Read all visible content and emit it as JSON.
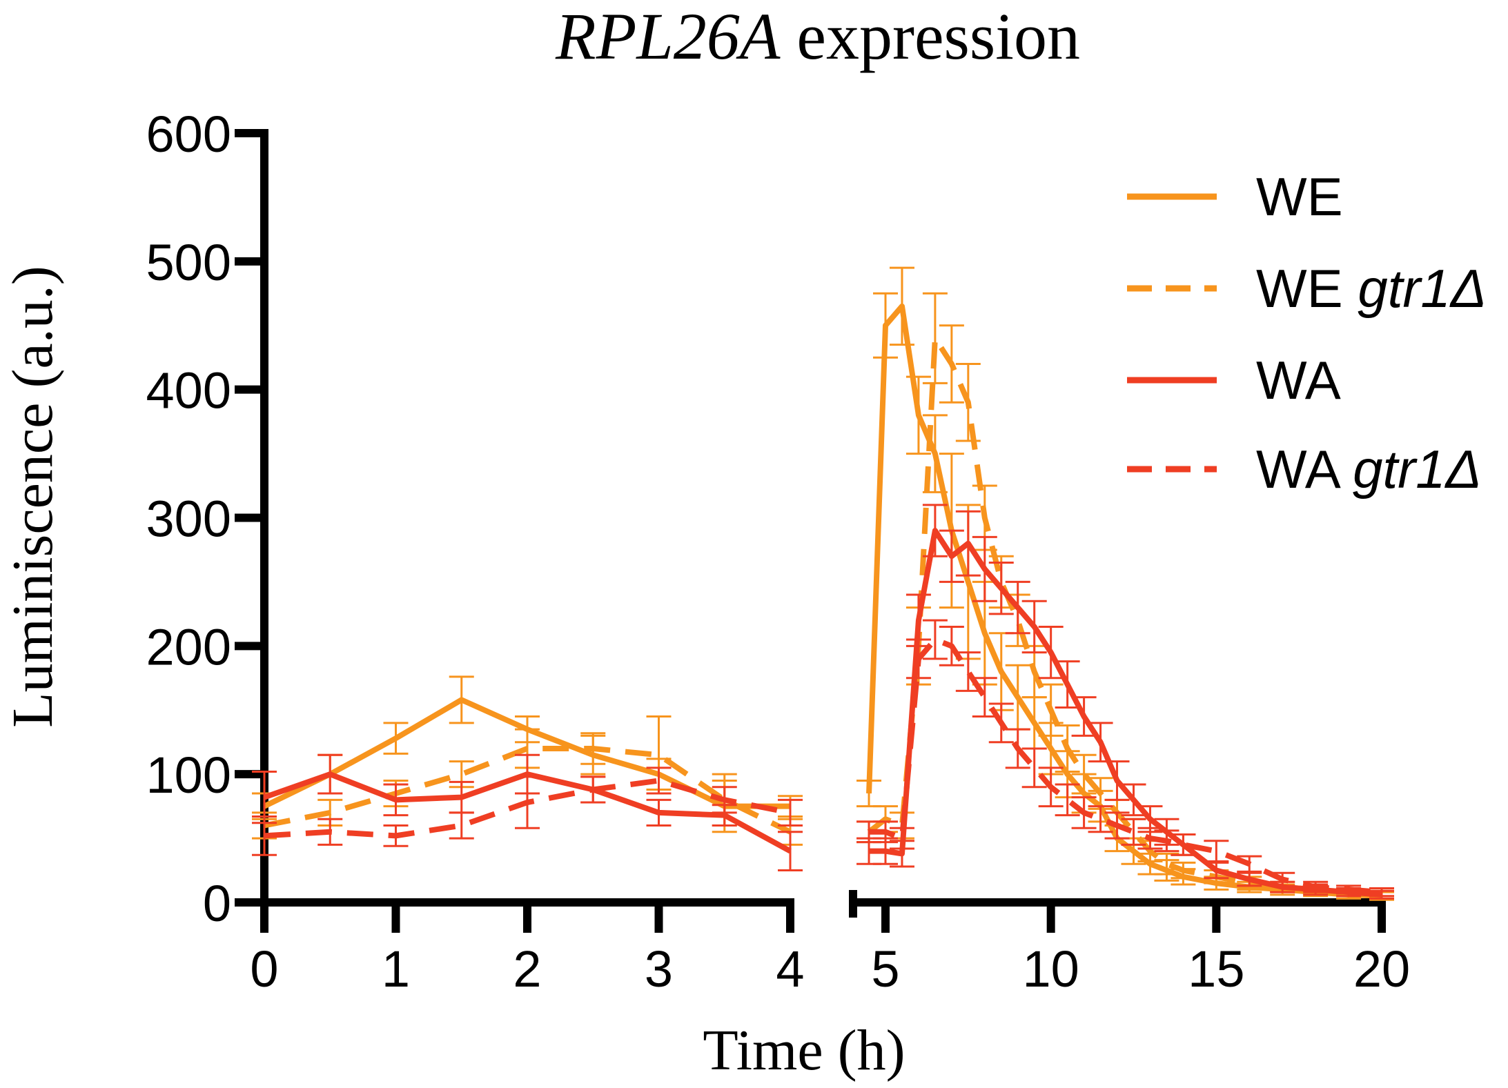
{
  "chart_data": {
    "type": "line",
    "title": "expression",
    "title_gene": "RPL26A",
    "xlabel": "Time (h)",
    "ylabel": "Luminiscence (a.u.)",
    "ylim": [
      0,
      600
    ],
    "y_ticks": [
      "0",
      "100",
      "200",
      "300",
      "400",
      "500",
      "600"
    ],
    "x_ticks_left": [
      "0",
      "1",
      "2",
      "3",
      "4"
    ],
    "x_ticks_right": [
      "5",
      "10",
      "15",
      "20"
    ],
    "x_ranges": {
      "left": [
        0,
        4
      ],
      "right": [
        4.1,
        20
      ]
    },
    "legend": "top-right",
    "series": [
      {
        "name": "WE",
        "name_suffix": "",
        "color": "#F7941D",
        "dash": "solid",
        "x": [
          0,
          0.5,
          1,
          1.5,
          2,
          2.5,
          3,
          3.5,
          4,
          4.5,
          5,
          5.5,
          6,
          6.5,
          7,
          7.5,
          8,
          8.5,
          9,
          9.5,
          10,
          10.5,
          11,
          11.5,
          12,
          12.5,
          13,
          13.5,
          14,
          15,
          16,
          17,
          18,
          19,
          20
        ],
        "y": [
          75,
          100,
          128,
          158,
          135,
          115,
          100,
          75,
          75,
          85,
          450,
          465,
          380,
          350,
          290,
          250,
          210,
          180,
          160,
          140,
          120,
          100,
          85,
          75,
          50,
          40,
          30,
          25,
          20,
          15,
          12,
          10,
          8,
          6,
          5
        ],
        "err": [
          10,
          15,
          12,
          18,
          10,
          15,
          12,
          20,
          8,
          10,
          25,
          30,
          30,
          30,
          60,
          60,
          40,
          30,
          25,
          20,
          20,
          18,
          15,
          12,
          10,
          10,
          8,
          8,
          6,
          5,
          4,
          4,
          3,
          3,
          3
        ]
      },
      {
        "name": "WE",
        "name_suffix": "gtr1Δ",
        "color": "#F7941D",
        "dash": "dashed",
        "x": [
          0,
          0.5,
          1,
          1.5,
          2,
          2.5,
          3,
          3.5,
          4,
          4.5,
          5,
          5.5,
          6,
          6.5,
          7,
          7.5,
          8,
          8.5,
          9,
          9.5,
          10,
          10.5,
          11,
          11.5,
          12,
          12.5,
          13,
          13.5,
          14,
          15,
          16,
          17,
          18,
          19,
          20
        ],
        "y": [
          60,
          70,
          85,
          100,
          120,
          120,
          115,
          80,
          55,
          55,
          65,
          60,
          200,
          440,
          420,
          390,
          300,
          250,
          220,
          180,
          150,
          120,
          100,
          85,
          70,
          55,
          40,
          30,
          25,
          20,
          15,
          12,
          10,
          8,
          6
        ],
        "err": [
          10,
          10,
          10,
          10,
          15,
          12,
          30,
          20,
          10,
          8,
          10,
          10,
          30,
          35,
          30,
          30,
          25,
          20,
          20,
          20,
          20,
          18,
          15,
          12,
          10,
          10,
          8,
          8,
          6,
          5,
          5,
          4,
          3,
          3,
          3
        ]
      },
      {
        "name": "WA",
        "name_suffix": "",
        "color": "#EF3E23",
        "dash": "solid",
        "x": [
          0,
          0.5,
          1,
          1.5,
          2,
          2.5,
          3,
          3.5,
          4,
          4.5,
          5,
          5.5,
          6,
          6.5,
          7,
          7.5,
          8,
          8.5,
          9,
          9.5,
          10,
          10.5,
          11,
          11.5,
          12,
          12.5,
          13,
          13.5,
          14,
          15,
          16,
          17,
          18,
          19,
          20
        ],
        "y": [
          82,
          100,
          80,
          82,
          100,
          88,
          70,
          68,
          40,
          40,
          40,
          38,
          220,
          290,
          270,
          280,
          260,
          245,
          230,
          215,
          195,
          170,
          145,
          125,
          95,
          80,
          65,
          55,
          45,
          25,
          18,
          12,
          10,
          8,
          6
        ],
        "err": [
          20,
          15,
          12,
          12,
          15,
          10,
          10,
          8,
          15,
          10,
          10,
          10,
          20,
          20,
          20,
          25,
          25,
          20,
          20,
          20,
          20,
          18,
          15,
          15,
          15,
          12,
          10,
          10,
          8,
          6,
          5,
          4,
          4,
          3,
          3
        ]
      },
      {
        "name": "WA",
        "name_suffix": "gtr1Δ",
        "color": "#EF3E23",
        "dash": "dashed",
        "x": [
          0,
          0.5,
          1,
          1.5,
          2,
          2.5,
          3,
          3.5,
          4,
          4.5,
          5,
          5.5,
          6,
          6.5,
          7,
          7.5,
          8,
          8.5,
          9,
          9.5,
          10,
          10.5,
          11,
          11.5,
          12,
          12.5,
          13,
          13.5,
          14,
          15,
          16,
          17,
          18,
          19,
          20
        ],
        "y": [
          52,
          55,
          52,
          60,
          78,
          88,
          95,
          80,
          70,
          55,
          55,
          50,
          190,
          205,
          200,
          180,
          160,
          140,
          120,
          105,
          90,
          80,
          70,
          65,
          60,
          55,
          50,
          48,
          45,
          40,
          30,
          18,
          12,
          10,
          8
        ],
        "err": [
          15,
          10,
          8,
          10,
          20,
          10,
          10,
          10,
          10,
          8,
          8,
          8,
          15,
          15,
          15,
          15,
          15,
          15,
          15,
          15,
          15,
          12,
          12,
          10,
          10,
          10,
          8,
          8,
          8,
          8,
          6,
          5,
          4,
          3,
          3
        ]
      }
    ]
  }
}
